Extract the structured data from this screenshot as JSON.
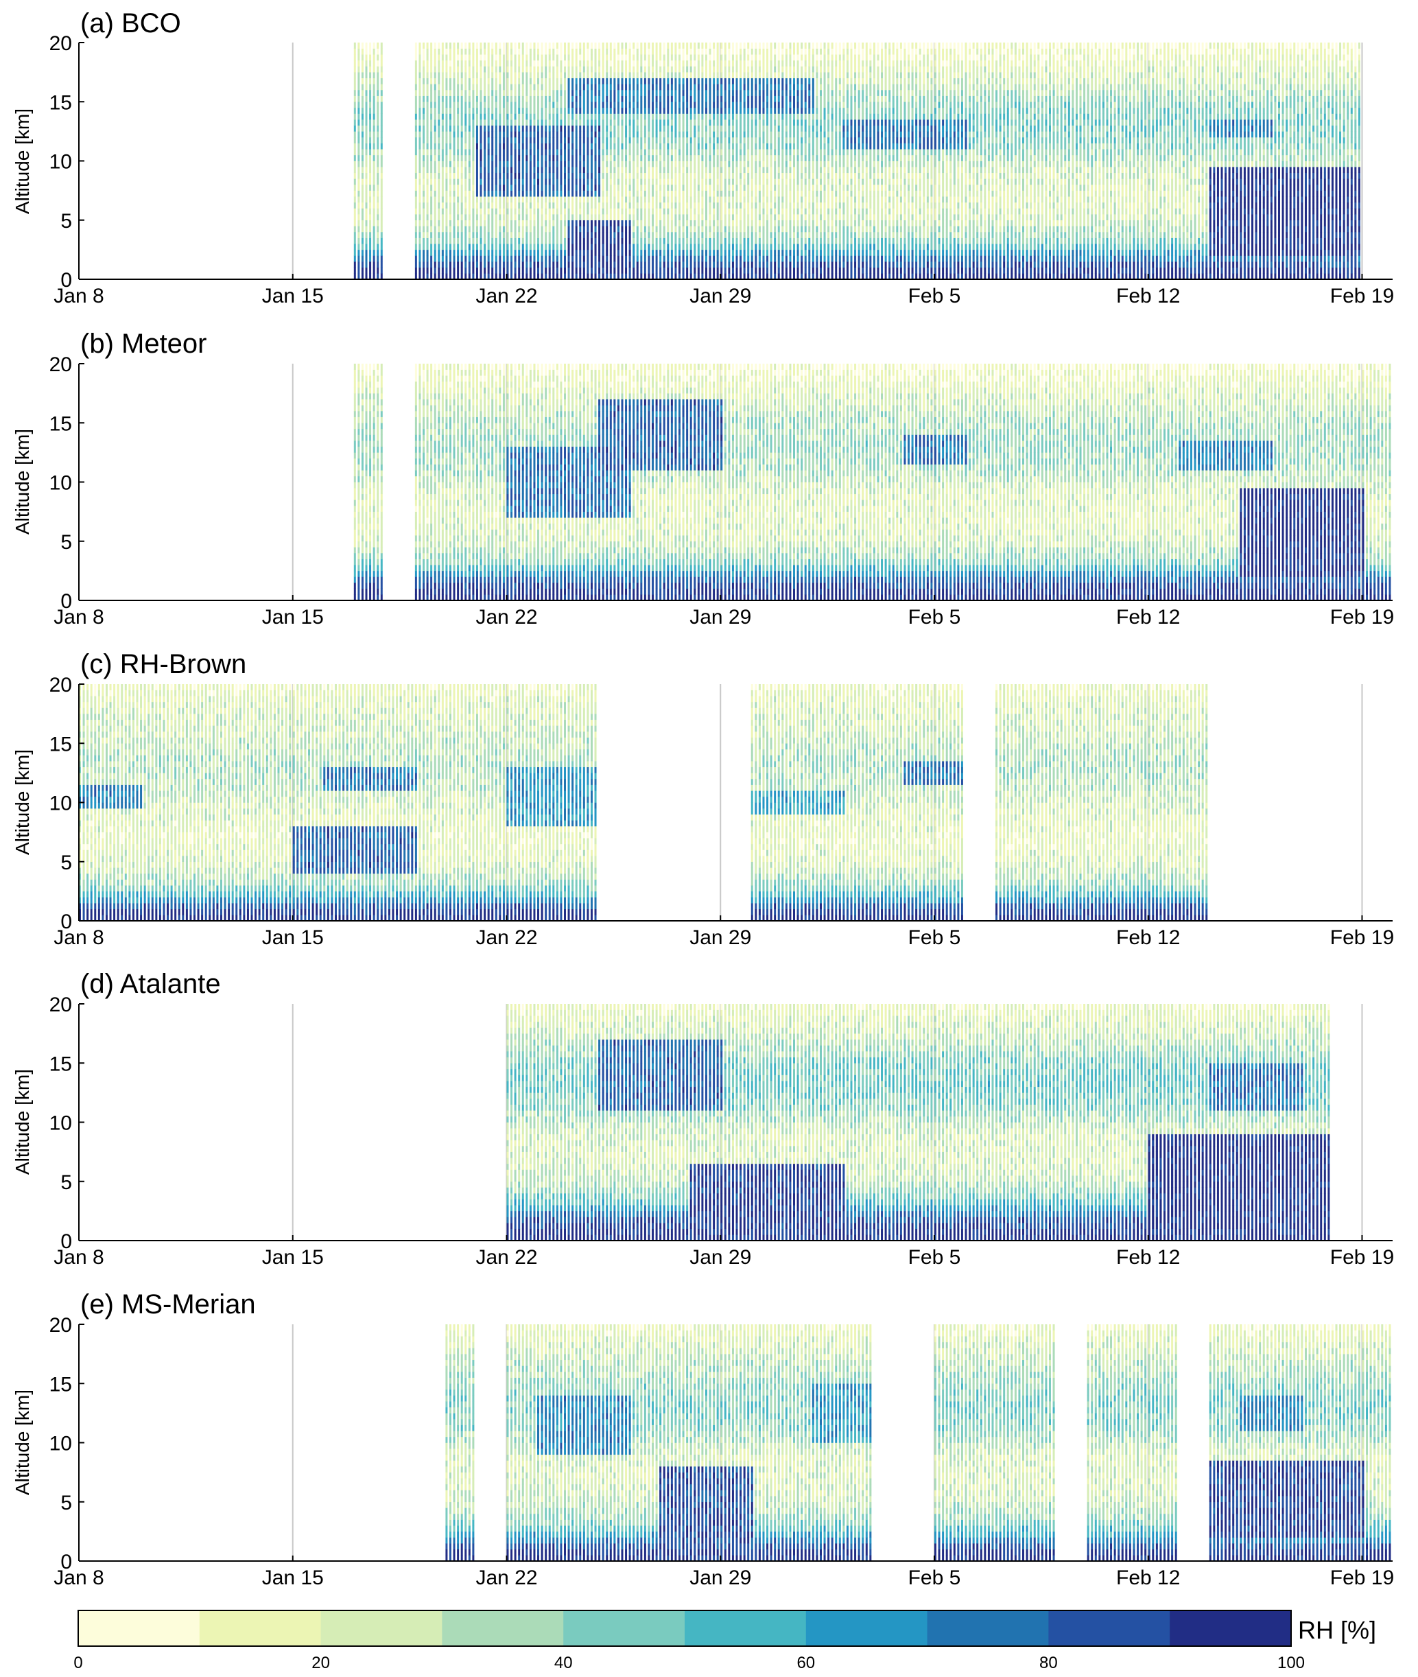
{
  "figure": {
    "colorbar": {
      "label": "RH [%]",
      "ticks": [
        0,
        20,
        40,
        60,
        80,
        100
      ],
      "levels": [
        0,
        10,
        20,
        30,
        40,
        50,
        60,
        70,
        80,
        90,
        100
      ],
      "colors": [
        "#fdfddb",
        "#ecf5b4",
        "#d6edb6",
        "#abdbb8",
        "#7acbbf",
        "#45b6c3",
        "#2496c4",
        "#2173b0",
        "#2451a3",
        "#212d85"
      ]
    }
  },
  "chart_data": [
    {
      "type": "heatmap",
      "title": "(a) BCO",
      "ylabel": "Altitude [km]",
      "ylim": [
        0,
        20
      ],
      "yticks": [
        0,
        5,
        10,
        15,
        20
      ],
      "xlim": [
        "2020-01-08",
        "2020-02-20"
      ],
      "xticks": [
        "Jan 8",
        "Jan 15",
        "Jan 22",
        "Jan 29",
        "Feb 5",
        "Feb 12",
        "Feb 19"
      ],
      "xtick_dates": [
        "2020-01-08",
        "2020-01-15",
        "2020-01-22",
        "2020-01-29",
        "2020-02-05",
        "2020-02-12",
        "2020-02-19"
      ],
      "z_unit": "RH [%]",
      "sounding_periods": [
        [
          "2020-01-17",
          "2020-01-17"
        ],
        [
          "2020-01-19",
          "2020-02-18"
        ]
      ],
      "profile_rh": {
        "altitude_km": [
          0,
          1,
          2,
          3,
          5,
          7,
          9,
          11,
          13,
          15,
          17,
          19,
          20
        ],
        "mean_rh": [
          98,
          90,
          70,
          45,
          25,
          22,
          25,
          40,
          45,
          40,
          25,
          15,
          10
        ]
      },
      "features": [
        {
          "start": "2020-01-21",
          "end": "2020-01-24",
          "alt_km": [
            7,
            13
          ],
          "rh": 80
        },
        {
          "start": "2020-01-24",
          "end": "2020-01-31",
          "alt_km": [
            14,
            17
          ],
          "rh": 75
        },
        {
          "start": "2020-01-24",
          "end": "2020-01-25",
          "alt_km": [
            0,
            5
          ],
          "rh": 90
        },
        {
          "start": "2020-02-02",
          "end": "2020-02-05",
          "alt_km": [
            11,
            13.5
          ],
          "rh": 75
        },
        {
          "start": "2020-02-14",
          "end": "2020-02-18",
          "alt_km": [
            2,
            9.5
          ],
          "rh": 95
        },
        {
          "start": "2020-02-14",
          "end": "2020-02-15",
          "alt_km": [
            12,
            13.5
          ],
          "rh": 70
        }
      ]
    },
    {
      "type": "heatmap",
      "title": "(b) Meteor",
      "ylabel": "Altitude [km]",
      "ylim": [
        0,
        20
      ],
      "yticks": [
        0,
        5,
        10,
        15,
        20
      ],
      "xlim": [
        "2020-01-08",
        "2020-02-20"
      ],
      "xticks": [
        "Jan 8",
        "Jan 15",
        "Jan 22",
        "Jan 29",
        "Feb 5",
        "Feb 12",
        "Feb 19"
      ],
      "xtick_dates": [
        "2020-01-08",
        "2020-01-15",
        "2020-01-22",
        "2020-01-29",
        "2020-02-05",
        "2020-02-12",
        "2020-02-19"
      ],
      "z_unit": "RH [%]",
      "sounding_periods": [
        [
          "2020-01-17",
          "2020-01-17"
        ],
        [
          "2020-01-19",
          "2020-02-18"
        ],
        [
          "2020-02-19",
          "2020-02-19"
        ],
        [
          "2020-02-20",
          "2020-02-20"
        ]
      ],
      "profile_rh": {
        "altitude_km": [
          0,
          1,
          2,
          3,
          5,
          7,
          9,
          11,
          13,
          15,
          17,
          19,
          20
        ],
        "mean_rh": [
          98,
          92,
          75,
          45,
          25,
          20,
          22,
          35,
          40,
          35,
          25,
          15,
          10
        ]
      },
      "features": [
        {
          "start": "2020-01-22",
          "end": "2020-01-25",
          "alt_km": [
            7,
            13
          ],
          "rh": 75
        },
        {
          "start": "2020-01-25",
          "end": "2020-01-28",
          "alt_km": [
            11,
            17
          ],
          "rh": 80
        },
        {
          "start": "2020-02-04",
          "end": "2020-02-05",
          "alt_km": [
            11.5,
            14
          ],
          "rh": 75
        },
        {
          "start": "2020-02-13",
          "end": "2020-02-15",
          "alt_km": [
            11,
            13.5
          ],
          "rh": 70
        },
        {
          "start": "2020-02-15",
          "end": "2020-02-18",
          "alt_km": [
            2,
            9.5
          ],
          "rh": 95
        }
      ]
    },
    {
      "type": "heatmap",
      "title": "(c) RH-Brown",
      "ylabel": "Altitude [km]",
      "ylim": [
        0,
        20
      ],
      "yticks": [
        0,
        5,
        10,
        15,
        20
      ],
      "xlim": [
        "2020-01-08",
        "2020-02-20"
      ],
      "xticks": [
        "Jan 8",
        "Jan 15",
        "Jan 22",
        "Jan 29",
        "Feb 5",
        "Feb 12",
        "Feb 19"
      ],
      "xtick_dates": [
        "2020-01-08",
        "2020-01-15",
        "2020-01-22",
        "2020-01-29",
        "2020-02-05",
        "2020-02-12",
        "2020-02-19"
      ],
      "z_unit": "RH [%]",
      "sounding_periods": [
        [
          "2020-01-08",
          "2020-01-24"
        ],
        [
          "2020-01-30",
          "2020-02-05"
        ],
        [
          "2020-02-07",
          "2020-02-13"
        ]
      ],
      "profile_rh": {
        "altitude_km": [
          0,
          1,
          2,
          3,
          5,
          7,
          9,
          11,
          13,
          15,
          17,
          19,
          20
        ],
        "mean_rh": [
          98,
          88,
          60,
          40,
          22,
          18,
          22,
          30,
          35,
          30,
          25,
          20,
          15
        ]
      },
      "features": [
        {
          "start": "2020-01-08",
          "end": "2020-01-09",
          "alt_km": [
            9.5,
            11.5
          ],
          "rh": 70
        },
        {
          "start": "2020-01-15",
          "end": "2020-01-18",
          "alt_km": [
            4,
            8
          ],
          "rh": 80
        },
        {
          "start": "2020-01-16",
          "end": "2020-01-18",
          "alt_km": [
            11,
            13
          ],
          "rh": 75
        },
        {
          "start": "2020-01-22",
          "end": "2020-01-24",
          "alt_km": [
            8,
            13
          ],
          "rh": 65
        },
        {
          "start": "2020-02-04",
          "end": "2020-02-05",
          "alt_km": [
            11.5,
            13.5
          ],
          "rh": 75
        },
        {
          "start": "2020-01-30",
          "end": "2020-02-01",
          "alt_km": [
            9,
            11
          ],
          "rh": 60
        }
      ]
    },
    {
      "type": "heatmap",
      "title": "(d) Atalante",
      "ylabel": "Altitude [km]",
      "ylim": [
        0,
        20
      ],
      "yticks": [
        0,
        5,
        10,
        15,
        20
      ],
      "xlim": [
        "2020-01-08",
        "2020-02-20"
      ],
      "xticks": [
        "Jan 8",
        "Jan 15",
        "Jan 22",
        "Jan 29",
        "Feb 5",
        "Feb 12",
        "Feb 19"
      ],
      "xtick_dates": [
        "2020-01-08",
        "2020-01-15",
        "2020-01-22",
        "2020-01-29",
        "2020-02-05",
        "2020-02-12",
        "2020-02-19"
      ],
      "z_unit": "RH [%]",
      "sounding_periods": [
        [
          "2020-01-22",
          "2020-01-22"
        ],
        [
          "2020-01-23",
          "2020-01-23"
        ],
        [
          "2020-01-24",
          "2020-02-12"
        ],
        [
          "2020-02-12",
          "2020-02-17"
        ]
      ],
      "profile_rh": {
        "altitude_km": [
          0,
          1,
          2,
          3,
          5,
          7,
          9,
          11,
          13,
          15,
          17,
          19,
          20
        ],
        "mean_rh": [
          98,
          92,
          80,
          55,
          30,
          22,
          25,
          40,
          50,
          45,
          30,
          20,
          15
        ]
      },
      "features": [
        {
          "start": "2020-01-25",
          "end": "2020-01-28",
          "alt_km": [
            11,
            17
          ],
          "rh": 80
        },
        {
          "start": "2020-01-28",
          "end": "2020-02-01",
          "alt_km": [
            0,
            6.5
          ],
          "rh": 90
        },
        {
          "start": "2020-02-12",
          "end": "2020-02-17",
          "alt_km": [
            1,
            9
          ],
          "rh": 95
        },
        {
          "start": "2020-02-14",
          "end": "2020-02-16",
          "alt_km": [
            11,
            15
          ],
          "rh": 75
        }
      ]
    },
    {
      "type": "heatmap",
      "title": "(e) MS-Merian",
      "ylabel": "Altitude [km]",
      "ylim": [
        0,
        20
      ],
      "yticks": [
        0,
        5,
        10,
        15,
        20
      ],
      "xlim": [
        "2020-01-08",
        "2020-02-20"
      ],
      "xticks": [
        "Jan 8",
        "Jan 15",
        "Jan 22",
        "Jan 29",
        "Feb 5",
        "Feb 12",
        "Feb 19"
      ],
      "xtick_dates": [
        "2020-01-08",
        "2020-01-15",
        "2020-01-22",
        "2020-01-29",
        "2020-02-05",
        "2020-02-12",
        "2020-02-19"
      ],
      "z_unit": "RH [%]",
      "sounding_periods": [
        [
          "2020-01-20",
          "2020-01-20"
        ],
        [
          "2020-01-22",
          "2020-01-22"
        ],
        [
          "2020-01-23",
          "2020-02-02"
        ],
        [
          "2020-02-05",
          "2020-02-08"
        ],
        [
          "2020-02-10",
          "2020-02-12"
        ],
        [
          "2020-02-14",
          "2020-02-18"
        ],
        [
          "2020-02-19",
          "2020-02-20"
        ]
      ],
      "profile_rh": {
        "altitude_km": [
          0,
          1,
          2,
          3,
          5,
          7,
          9,
          11,
          13,
          15,
          17,
          19,
          20
        ],
        "mean_rh": [
          98,
          90,
          65,
          45,
          28,
          22,
          25,
          40,
          45,
          40,
          30,
          20,
          15
        ]
      },
      "features": [
        {
          "start": "2020-01-23",
          "end": "2020-01-25",
          "alt_km": [
            9,
            14
          ],
          "rh": 70
        },
        {
          "start": "2020-01-27",
          "end": "2020-01-29",
          "alt_km": [
            0,
            8
          ],
          "rh": 85
        },
        {
          "start": "2020-02-01",
          "end": "2020-02-03",
          "alt_km": [
            10,
            15
          ],
          "rh": 65
        },
        {
          "start": "2020-02-14",
          "end": "2020-02-18",
          "alt_km": [
            2,
            8.5
          ],
          "rh": 90
        },
        {
          "start": "2020-02-15",
          "end": "2020-02-16",
          "alt_km": [
            11,
            14
          ],
          "rh": 70
        }
      ]
    }
  ]
}
